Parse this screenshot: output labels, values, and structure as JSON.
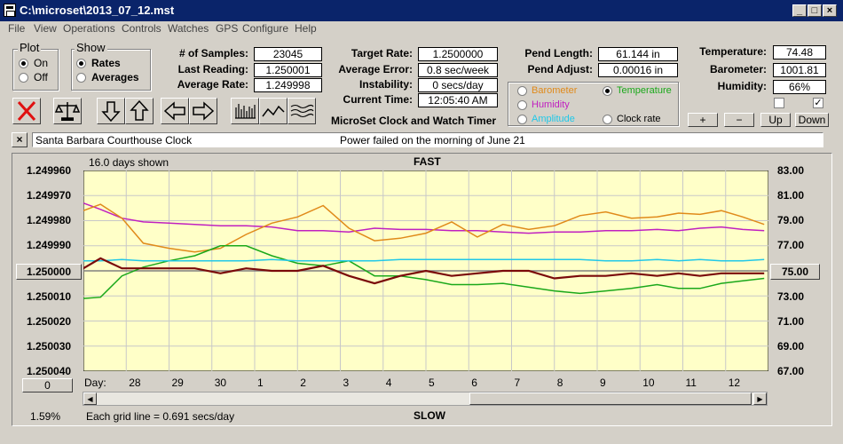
{
  "window": {
    "title": "C:\\microset\\2013_07_12.mst"
  },
  "menu": [
    "File",
    "View",
    "Operations",
    "Controls",
    "Watches",
    "GPS",
    "Configure",
    "Help"
  ],
  "plot_group": {
    "title": "Plot",
    "options": [
      "On",
      "Off"
    ],
    "selected": "On"
  },
  "show_group": {
    "title": "Show",
    "options": [
      "Rates",
      "Averages"
    ],
    "selected": "Rates"
  },
  "stats": {
    "samples_label": "# of Samples:",
    "samples": "23045",
    "last_label": "Last Reading:",
    "last": "1.250001",
    "avg_label": "Average Rate:",
    "avg": "1.249998"
  },
  "timing": {
    "target_label": "Target Rate:",
    "target": "1.2500000",
    "error_label": "Average Error:",
    "error": "0.8 sec/week",
    "instab_label": "Instability:",
    "instab": "0 secs/day",
    "time_label": "Current Time:",
    "time": "12:05:40 AM"
  },
  "pend": {
    "length_label": "Pend Length:",
    "length": "61.144 in",
    "adjust_label": "Pend Adjust:",
    "adjust": "0.00016 in"
  },
  "env": {
    "temp_label": "Temperature:",
    "temp": "74.48",
    "baro_label": "Barometer:",
    "baro": "1001.81",
    "hum_label": "Humidity:",
    "hum": "66%"
  },
  "aux_options": [
    {
      "label": "Barometer",
      "color": "#e08a1a",
      "selected": false
    },
    {
      "label": "Temperature",
      "color": "#1aa81a",
      "selected": true
    },
    {
      "label": "Humidity",
      "color": "#c020c0",
      "selected": false
    },
    {
      "label": "Clock rate",
      "color": "#000000",
      "selected": false
    },
    {
      "label": "Amplitude",
      "color": "#20c8e8",
      "selected": false
    }
  ],
  "aux_buttons": [
    "+",
    "−",
    "Up",
    "Down"
  ],
  "app_heading": "MicroSet Clock and Watch Timer",
  "description": {
    "name": "Santa Barbara Courthouse Clock",
    "note": "Power failed on the morning of June 21"
  },
  "graph": {
    "days_shown": "16.0 days shown",
    "fast": "FAST",
    "slow": "SLOW",
    "grid_note": "Each grid line = 0.691 secs/day",
    "percent": "1.59%",
    "zero_btn": "0",
    "day_prefix": "Day:",
    "center_right": "75.00",
    "center_left": "1.250000"
  },
  "chart_data": {
    "type": "line",
    "left_axis_ticks": [
      "1.249960",
      "1.249970",
      "1.249980",
      "1.249990",
      "1.250000",
      "1.250010",
      "1.250020",
      "1.250030",
      "1.250040"
    ],
    "right_axis_ticks": [
      "83.00",
      "81.00",
      "79.00",
      "77.00",
      "75.00",
      "73.00",
      "71.00",
      "69.00",
      "67.00"
    ],
    "x_ticks": [
      "28",
      "29",
      "30",
      "1",
      "2",
      "3",
      "4",
      "5",
      "6",
      "7",
      "8",
      "9",
      "10",
      "11",
      "12"
    ],
    "x": [
      27,
      27.4,
      27.9,
      28.4,
      29,
      29.6,
      30.2,
      30.8,
      31.4,
      32,
      32.6,
      33.2,
      33.8,
      34.4,
      35,
      35.6,
      36.2,
      36.8,
      37.4,
      38,
      38.6,
      39.2,
      39.8,
      40.4,
      40.9,
      41.4,
      41.9,
      42.4,
      42.9
    ],
    "series": [
      {
        "name": "Clock rate",
        "color": "#7a0a0a",
        "values": [
          1.249999,
          1.249995,
          1.249999,
          1.249999,
          1.249999,
          1.249999,
          1.250001,
          1.249999,
          1.25,
          1.25,
          1.249998,
          1.250002,
          1.250005,
          1.250002,
          1.25,
          1.250002,
          1.250001,
          1.25,
          1.25,
          1.250003,
          1.250002,
          1.250002,
          1.250001,
          1.250002,
          1.250001,
          1.250002,
          1.250001,
          1.250001,
          1.250001
        ]
      },
      {
        "name": "Barometer",
        "color": "#e08a1a",
        "values": [
          79.8,
          80.3,
          79.2,
          77.2,
          76.8,
          76.5,
          76.8,
          77.9,
          78.8,
          79.3,
          80.2,
          78.4,
          77.4,
          77.6,
          78.0,
          78.9,
          77.7,
          78.7,
          78.3,
          78.6,
          79.4,
          79.7,
          79.2,
          79.3,
          79.6,
          79.5,
          79.8,
          79.3,
          78.7
        ]
      },
      {
        "name": "Temperature",
        "color": "#1aa81a",
        "values": [
          72.8,
          72.9,
          74.6,
          75.3,
          75.8,
          76.2,
          77.0,
          77.0,
          76.2,
          75.6,
          75.4,
          75.8,
          74.6,
          74.6,
          74.3,
          73.9,
          73.9,
          74.0,
          73.7,
          73.4,
          73.2,
          73.4,
          73.6,
          73.9,
          73.6,
          73.6,
          74.0,
          74.2,
          74.4
        ]
      },
      {
        "name": "Humidity",
        "color": "#c020c0",
        "values": [
          80.4,
          79.9,
          79.2,
          78.9,
          78.8,
          78.7,
          78.6,
          78.6,
          78.5,
          78.2,
          78.2,
          78.1,
          78.4,
          78.3,
          78.3,
          78.2,
          78.2,
          78.1,
          78.0,
          78.1,
          78.1,
          78.2,
          78.2,
          78.3,
          78.2,
          78.4,
          78.5,
          78.3,
          78.2
        ]
      },
      {
        "name": "Amplitude",
        "color": "#20c8e8",
        "values": [
          75.8,
          75.8,
          75.9,
          75.8,
          75.8,
          75.8,
          75.8,
          75.8,
          75.9,
          75.8,
          75.8,
          75.8,
          75.8,
          75.9,
          75.9,
          75.9,
          75.9,
          75.9,
          75.9,
          75.9,
          75.9,
          75.8,
          75.8,
          75.9,
          75.8,
          75.9,
          75.8,
          75.8,
          75.9
        ]
      }
    ]
  }
}
